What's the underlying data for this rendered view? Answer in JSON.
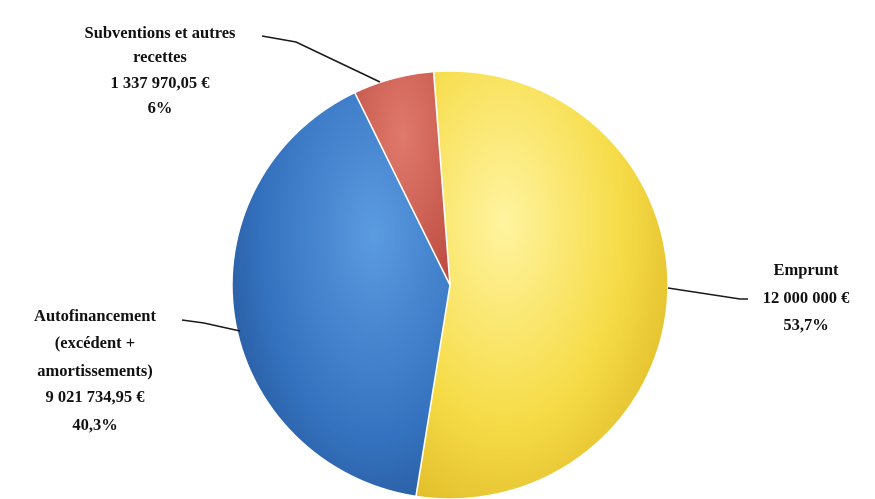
{
  "chart_data": {
    "type": "pie",
    "slices": [
      {
        "name": "Emprunt",
        "value_label": "12 000 000 €",
        "percent": 53.7,
        "percent_label": "53,7%",
        "color": "#f4d63e"
      },
      {
        "name": "Autofinancement (excédent + amortissements)",
        "value_label": "9 021 734,95 €",
        "percent": 40.3,
        "percent_label": "40,3%",
        "color": "#3a78c4"
      },
      {
        "name": "Subventions et autres recettes",
        "value_label": "1 337 970,05 €",
        "percent": 6,
        "percent_label": "6%",
        "color": "#cf5b4e"
      }
    ],
    "labels": {
      "emprunt": {
        "line1": "Emprunt",
        "value": "12 000 000 €",
        "percent": "53,7%"
      },
      "autofinancement": {
        "line1": "Autofinancement",
        "line2": "(excédent +",
        "line3": "amortissements)",
        "value": "9 021 734,95 €",
        "percent": "40,3%"
      },
      "subventions": {
        "line1": "Subventions et autres",
        "line2": "recettes",
        "value": "1 337 970,05 €",
        "percent": "6%"
      }
    }
  }
}
